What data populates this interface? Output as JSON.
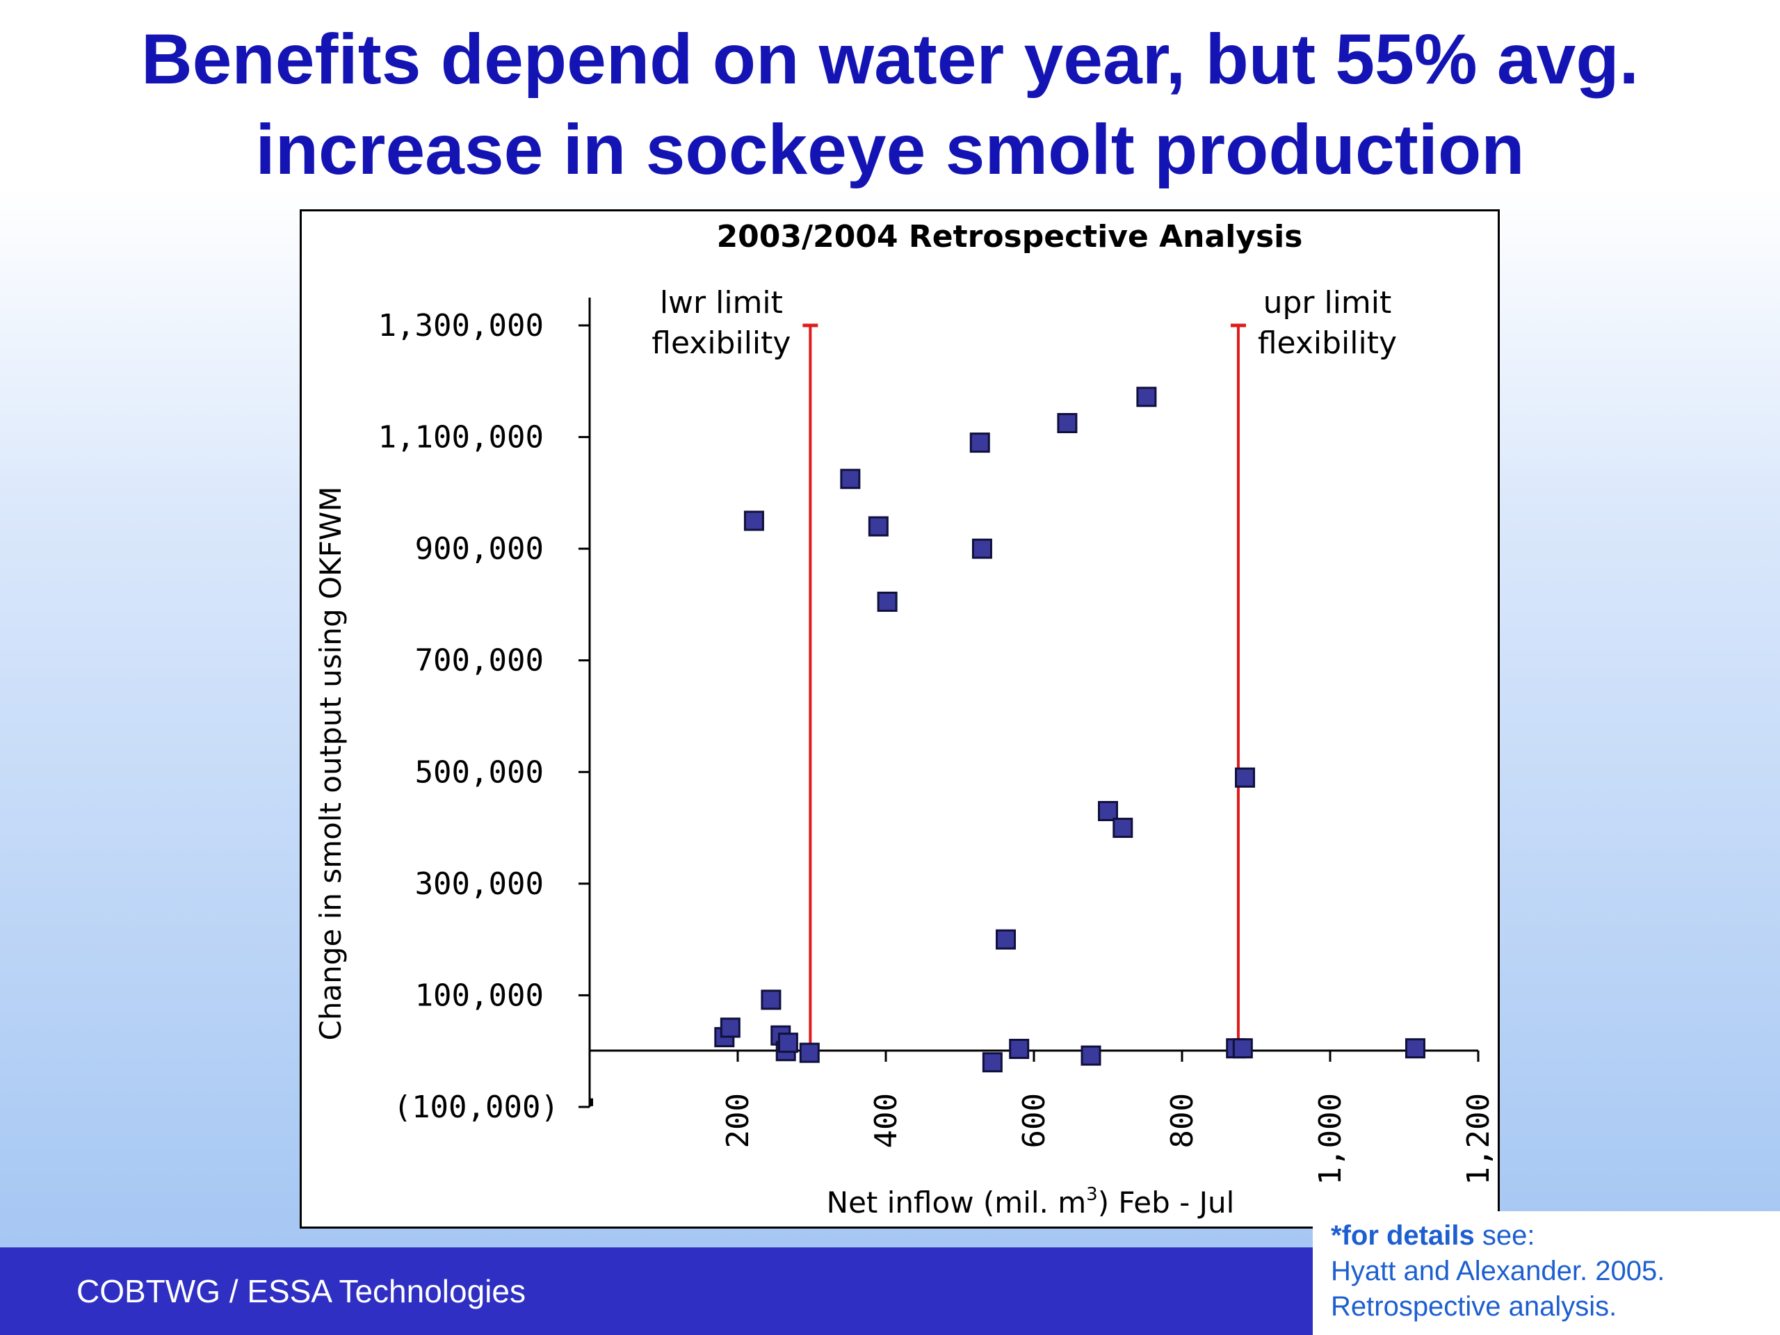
{
  "slide": {
    "title_line1": "Benefits depend on water year, but 55% avg.",
    "title_line2": "increase in sockeye smolt production",
    "footer": "COBTWG / ESSA Technologies",
    "note_bold": "*for details",
    "note_rest": " see:",
    "note_line2": "Hyatt and Alexander. 2005.",
    "note_line3": "Retrospective analysis."
  },
  "colors": {
    "title": "#1414b4",
    "marker_fill": "#3a3a9c",
    "marker_stroke": "#10103c",
    "limit_line": "#e01b1b",
    "footer_bar": "#2f2fc4",
    "note_text": "#1d5fd0"
  },
  "chart_data": {
    "type": "scatter",
    "title": "2003/2004 Retrospective Analysis",
    "xlabel_prefix": "Net inflow (mil. m",
    "xlabel_sup": "3",
    "xlabel_suffix": ") Feb - Jul",
    "ylabel": "Change in smolt output using OKFWM",
    "xlim": [
      0,
      1200
    ],
    "ylim": [
      -100000,
      1300000
    ],
    "x_ticks": [
      0,
      200,
      400,
      600,
      800,
      1000,
      1200
    ],
    "x_tick_labels": [
      "-",
      "200",
      "400",
      "600",
      "800",
      "1,000",
      "1,200"
    ],
    "y_ticks": [
      1300000,
      1100000,
      900000,
      700000,
      500000,
      300000,
      100000,
      -100000
    ],
    "y_tick_labels": [
      "1,300,000",
      "1,100,000",
      "900,000",
      "700,000",
      "500,000",
      "300,000",
      "100,000",
      "(100,000)"
    ],
    "marker": "square",
    "points": [
      {
        "x": 182,
        "y": 25000
      },
      {
        "x": 190,
        "y": 42000
      },
      {
        "x": 222,
        "y": 950000
      },
      {
        "x": 245,
        "y": 92000
      },
      {
        "x": 258,
        "y": 28000
      },
      {
        "x": 265,
        "y": 0
      },
      {
        "x": 268,
        "y": 15000
      },
      {
        "x": 297,
        "y": -3000
      },
      {
        "x": 352,
        "y": 1025000
      },
      {
        "x": 390,
        "y": 940000
      },
      {
        "x": 402,
        "y": 805000
      },
      {
        "x": 527,
        "y": 1090000
      },
      {
        "x": 530,
        "y": 900000
      },
      {
        "x": 544,
        "y": -20000
      },
      {
        "x": 562,
        "y": 200000
      },
      {
        "x": 580,
        "y": 4000
      },
      {
        "x": 645,
        "y": 1125000
      },
      {
        "x": 677,
        "y": -8000
      },
      {
        "x": 700,
        "y": 430000
      },
      {
        "x": 720,
        "y": 400000
      },
      {
        "x": 752,
        "y": 1172000
      },
      {
        "x": 873,
        "y": 5000
      },
      {
        "x": 885,
        "y": 490000
      },
      {
        "x": 882,
        "y": 5000
      },
      {
        "x": 1115,
        "y": 5000
      }
    ],
    "reference_lines": [
      {
        "x": 298,
        "y_top": 1300000,
        "label_line1": "lwr limit",
        "label_line2": "flexibility"
      },
      {
        "x": 876,
        "y_top": 1300000,
        "label_line1": "upr limit",
        "label_line2": "flexibility"
      }
    ]
  }
}
